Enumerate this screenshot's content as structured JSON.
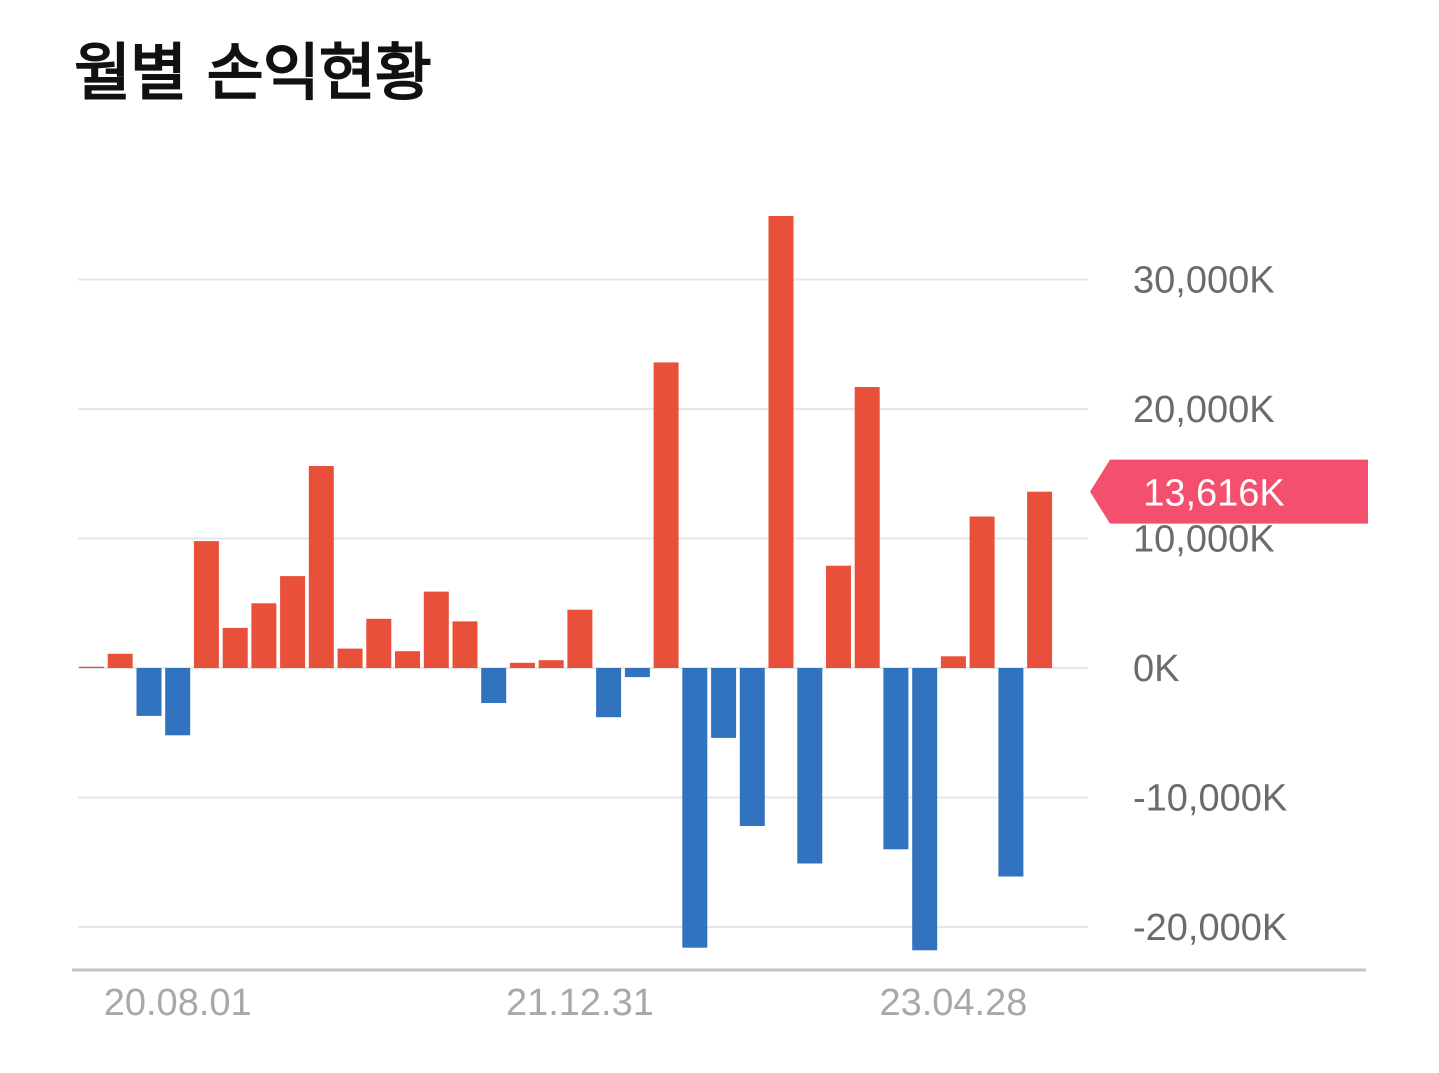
{
  "title": "월별 손익현황",
  "chart_data": {
    "type": "bar",
    "title": "월별 손익현황",
    "unit": "K",
    "ylim": [
      -23000,
      35000
    ],
    "yticks": [
      30000,
      20000,
      10000,
      0,
      -10000,
      -20000
    ],
    "ytick_labels": [
      "30,000K",
      "20,000K",
      "10,000K",
      "0K",
      "-10,000K",
      "-20,000K"
    ],
    "xtick_labels": [
      "20.08.01",
      "21.12.31",
      "23.04.28"
    ],
    "values": [
      100,
      1100,
      -3700,
      -5200,
      9800,
      3100,
      5000,
      7100,
      15600,
      1500,
      3800,
      1300,
      5900,
      3600,
      -2700,
      400,
      600,
      4500,
      -3800,
      -700,
      23600,
      -21600,
      -5400,
      -12200,
      34900,
      -15100,
      7900,
      21700,
      -14000,
      -21800,
      900,
      11700,
      -16100,
      13616
    ],
    "xtick_bar_index": [
      3,
      17,
      30
    ],
    "grid": true,
    "colors": {
      "positive": "#E8503A",
      "negative": "#3273BF",
      "grid": "#e6e6e6",
      "axis": "#c4c4c4"
    },
    "current": {
      "value": 13616,
      "label": "13,616K",
      "color": "#F2506E"
    }
  }
}
